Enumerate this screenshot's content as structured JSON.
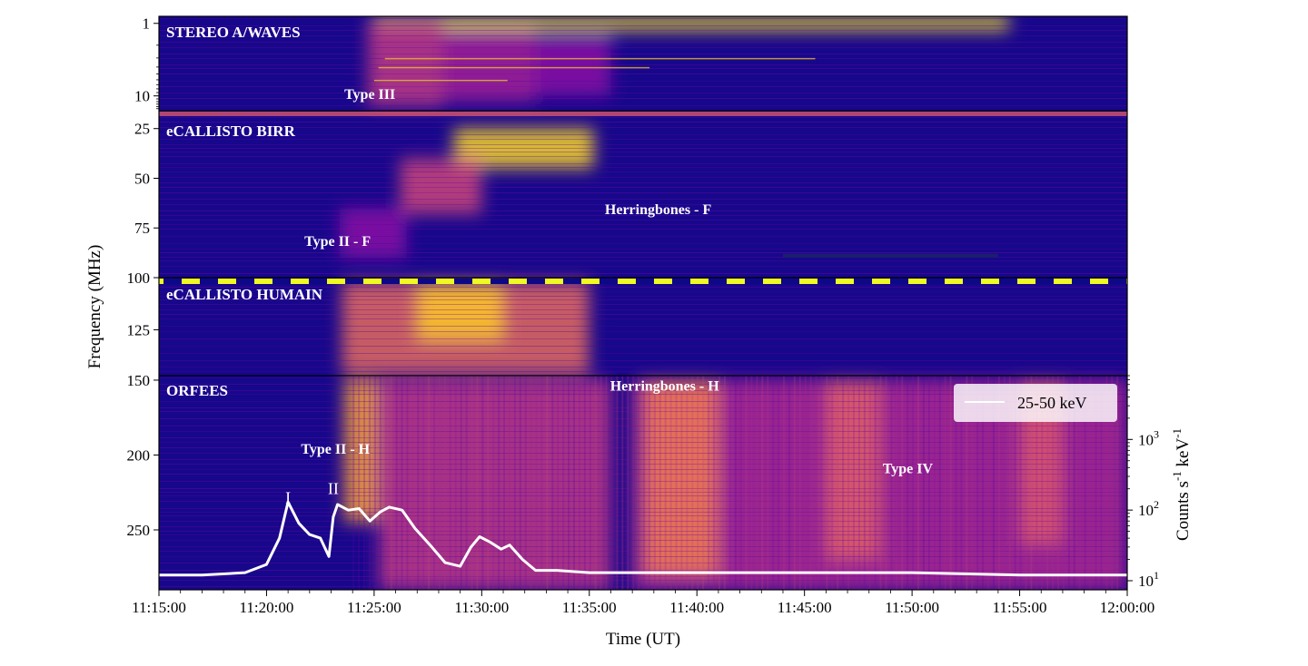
{
  "chart_data": {
    "type": "heatmap",
    "title": "",
    "xlabel": "Time (UT)",
    "ylabel": "Frequency (MHz)",
    "y2label": "Counts s$^{-1}$ keV$^{-1}$",
    "x_ticks": [
      "11:15:00",
      "11:20:00",
      "11:25:00",
      "11:30:00",
      "11:35:00",
      "11:40:00",
      "11:45:00",
      "11:50:00",
      "11:55:00",
      "12:00:00"
    ],
    "x_range_min": [
      0,
      45
    ],
    "y2_scale": "log",
    "y2_range": [
      10,
      8000
    ],
    "y2_ticks": [
      {
        "value": 10,
        "base": "10",
        "exp": "1"
      },
      {
        "value": 100,
        "base": "10",
        "exp": "2"
      },
      {
        "value": 1000,
        "base": "10",
        "exp": "3"
      }
    ],
    "colormap": [
      "#0d0887",
      "#5302a3",
      "#8b0aa5",
      "#b83289",
      "#db5c68",
      "#f48849",
      "#febd2a",
      "#f0f921"
    ],
    "panels": [
      {
        "name": "STEREO A/WAVES",
        "y_scale": "log",
        "y_range": [
          0.8,
          16
        ],
        "y_ticks": [
          1,
          10
        ],
        "annotations": [
          {
            "text": "Type III",
            "t": 9.8,
            "f": 11
          }
        ]
      },
      {
        "name": "eCALLISTO BIRR",
        "y_scale": "linear",
        "y_range": [
          16,
          100
        ],
        "y_ticks": [
          25,
          50,
          75
        ],
        "annotations": [
          {
            "text": "Herringbones - F",
            "t": 23.2,
            "f": 68
          },
          {
            "text": "Type II - F",
            "t": 8.3,
            "f": 84
          }
        ]
      },
      {
        "name": "eCALLISTO HUMAIN",
        "y_scale": "linear",
        "y_range": [
          100,
          147
        ],
        "y_ticks": [
          100,
          125
        ],
        "annotations": []
      },
      {
        "name": "ORFEES",
        "y_scale": "linear",
        "y_range": [
          147,
          290
        ],
        "y_ticks": [
          150,
          200,
          250
        ],
        "annotations": [
          {
            "text": "Herringbones - H",
            "t": 23.5,
            "f": 157
          },
          {
            "text": "Type II - H",
            "t": 8.2,
            "f": 199
          },
          {
            "text": "Type IV",
            "t": 34.8,
            "f": 212
          },
          {
            "text": "I",
            "t": 6.0,
            "f": 232
          },
          {
            "text": "II",
            "t": 8.1,
            "f": 226
          }
        ]
      }
    ],
    "features": [
      {
        "panel": 0,
        "t0": 10.0,
        "t1": 39.5,
        "f_lo": 0.8,
        "f_hi": 1.25,
        "level": 0.96
      },
      {
        "panel": 0,
        "t0": 9.7,
        "t1": 13.2,
        "f_lo": 0.9,
        "f_hi": 14,
        "level": 0.45
      },
      {
        "panel": 0,
        "t0": 13.2,
        "t1": 17.5,
        "f_lo": 1.2,
        "f_hi": 12,
        "level": 0.36
      },
      {
        "panel": 0,
        "t0": 17.5,
        "t1": 21,
        "f_lo": 1.5,
        "f_hi": 10,
        "level": 0.28
      },
      {
        "panel": 1,
        "t0": 13.7,
        "t1": 20.2,
        "f_lo": 25,
        "f_hi": 45,
        "level": 0.92
      },
      {
        "panel": 1,
        "t0": 11.2,
        "t1": 15.0,
        "f_lo": 40,
        "f_hi": 68,
        "level": 0.5
      },
      {
        "panel": 1,
        "t0": 8.4,
        "t1": 11.5,
        "f_lo": 65,
        "f_hi": 90,
        "level": 0.28
      },
      {
        "panel": 2,
        "t0": 8.5,
        "t1": 20.0,
        "f_lo": 102,
        "f_hi": 146,
        "level": 0.62
      },
      {
        "panel": 2,
        "t0": 12.0,
        "t1": 16.0,
        "f_lo": 103,
        "f_hi": 130,
        "level": 0.88
      },
      {
        "panel": 3,
        "t0": 8.6,
        "t1": 10.2,
        "f_lo": 150,
        "f_hi": 245,
        "level": 0.78
      },
      {
        "panel": 3,
        "t0": 10.2,
        "t1": 21.0,
        "f_lo": 150,
        "f_hi": 290,
        "level": 0.45
      },
      {
        "panel": 3,
        "t0": 22.0,
        "t1": 45.0,
        "f_lo": 150,
        "f_hi": 290,
        "level": 0.4
      },
      {
        "panel": 3,
        "t0": 22.5,
        "t1": 26.0,
        "f_lo": 150,
        "f_hi": 280,
        "level": 0.68
      },
      {
        "panel": 3,
        "t0": 31.0,
        "t1": 33.5,
        "f_lo": 150,
        "f_hi": 270,
        "level": 0.58
      },
      {
        "panel": 3,
        "t0": 40.0,
        "t1": 42.0,
        "f_lo": 150,
        "f_hi": 260,
        "level": 0.55
      }
    ],
    "series": [
      {
        "name": "25-50 keV",
        "color": "#ffffff",
        "x": [
          0,
          2,
          4,
          5,
          5.6,
          6.0,
          6.5,
          7.0,
          7.5,
          7.9,
          8.1,
          8.3,
          8.8,
          9.3,
          9.8,
          10.3,
          10.7,
          11.3,
          11.9,
          12.6,
          13.3,
          14.0,
          14.5,
          14.9,
          15.4,
          15.9,
          16.3,
          16.9,
          17.5,
          18.5,
          20,
          25,
          30,
          35,
          40,
          45
        ],
        "y": [
          12,
          12,
          13,
          17,
          40,
          130,
          65,
          45,
          40,
          22,
          80,
          120,
          100,
          105,
          70,
          95,
          110,
          100,
          55,
          32,
          18,
          16,
          30,
          42,
          35,
          28,
          32,
          20,
          14,
          14,
          13,
          13,
          13,
          13,
          12,
          12
        ]
      }
    ],
    "legend": {
      "label": "25-50 keV",
      "position": "top-right"
    }
  }
}
